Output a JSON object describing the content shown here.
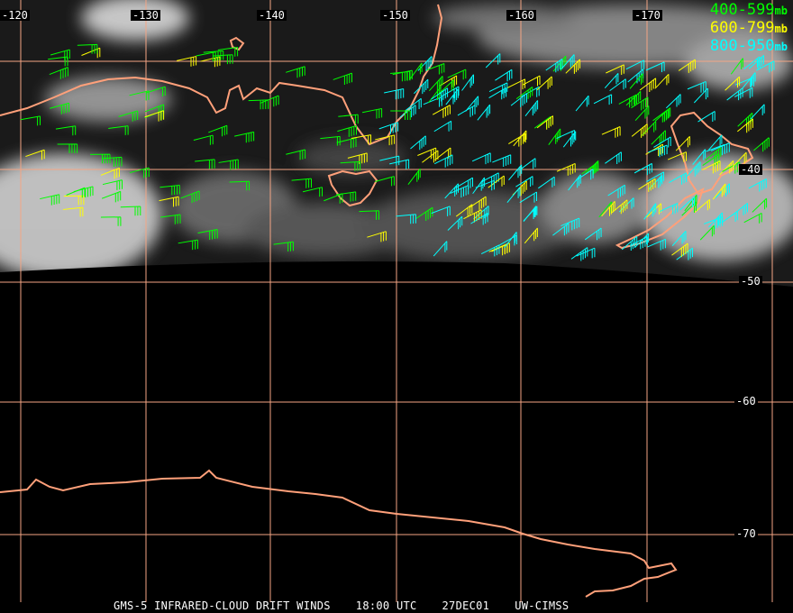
{
  "title": "GMS-5 INFRARED-CLOUD DRIFT WINDS",
  "caption": {
    "product": "GMS-5 INFRARED-CLOUD DRIFT WINDS",
    "time": "18:00 UTC",
    "date": "27DEC01",
    "source": "UW-CIMSS"
  },
  "legend": [
    {
      "range": "400-599",
      "unit": "mb",
      "color": "#00ff00"
    },
    {
      "range": "600-799",
      "unit": "mb",
      "color": "#ffff00"
    },
    {
      "range": "800-950",
      "unit": "mb",
      "color": "#00ffff"
    }
  ],
  "longitude_labels": [
    "-120",
    "-130",
    "-140",
    "-150",
    "-160",
    "-170"
  ],
  "latitude_labels": [
    "-40",
    "-50",
    "-60",
    "-70"
  ],
  "colors": {
    "grid": "#f4a584",
    "coastline": "#ffa07a",
    "background": "#000000"
  }
}
